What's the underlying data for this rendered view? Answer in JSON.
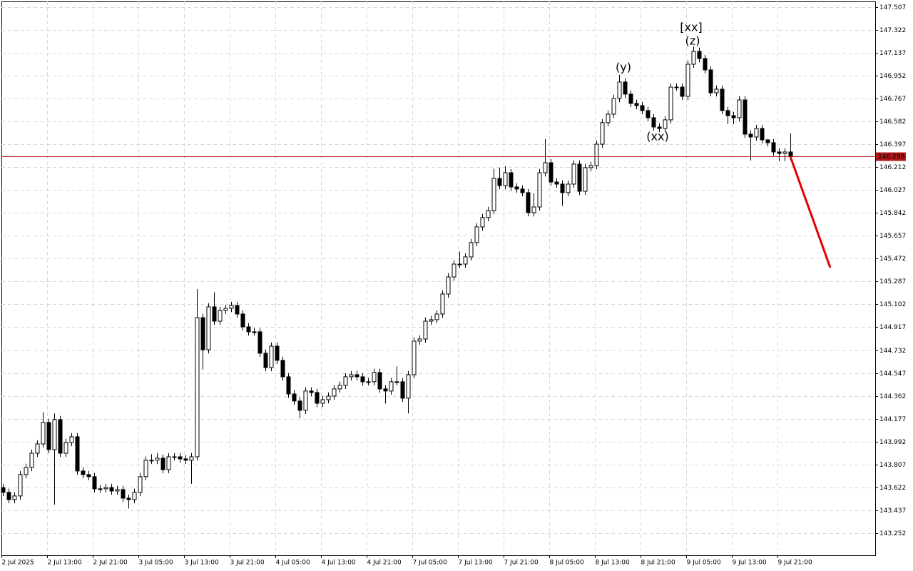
{
  "chart_data": {
    "type": "candlestick",
    "categories": [
      "2 Jul 2025",
      null,
      null,
      null,
      null,
      null,
      null,
      null,
      "2 Jul 13:00",
      null,
      null,
      null,
      null,
      null,
      null,
      null,
      "2 Jul 21:00",
      null,
      null,
      null,
      null,
      null,
      null,
      null,
      "3 Jul 05:00",
      null,
      null,
      null,
      null,
      null,
      null,
      null,
      "3 Jul 13:00",
      null,
      null,
      null,
      null,
      null,
      null,
      null,
      "3 Jul 21:00",
      null,
      null,
      null,
      null,
      null,
      null,
      null,
      "4 Jul 05:00",
      null,
      null,
      null,
      null,
      null,
      null,
      null,
      "4 Jul 13:00",
      null,
      null,
      null,
      null,
      null,
      null,
      null,
      "4 Jul 21:00",
      null,
      null,
      null,
      null,
      null,
      null,
      null,
      "7 Jul 05:00",
      null,
      null,
      null,
      null,
      null,
      null,
      null,
      "7 Jul 13:00",
      null,
      null,
      null,
      null,
      null,
      null,
      null,
      "7 Jul 21:00",
      null,
      null,
      null,
      null,
      null,
      null,
      null,
      "8 Jul 05:00",
      null,
      null,
      null,
      null,
      null,
      null,
      null,
      "8 Jul 13:00",
      null,
      null,
      null,
      null,
      null,
      null,
      null,
      "8 Jul 21:00",
      null,
      null,
      null,
      null,
      null,
      null,
      null,
      "9 Jul 05:00",
      null,
      null,
      null,
      null,
      null,
      null,
      null,
      "9 Jul 13:00",
      null,
      null,
      null,
      null,
      null,
      null,
      null,
      "9 Jul 21:00",
      null,
      null,
      null,
      null,
      null,
      null,
      null,
      null,
      null
    ],
    "open": [
      143.62,
      143.581,
      143.523,
      143.552,
      143.725,
      143.783,
      143.898,
      143.973,
      144.147,
      143.927,
      144.17,
      143.898,
      143.985,
      144.031,
      143.754,
      143.725,
      143.708,
      143.61,
      143.61,
      143.621,
      143.592,
      143.604,
      143.534,
      143.523,
      143.581,
      143.708,
      143.841,
      143.841,
      143.858,
      143.765,
      143.869,
      143.869,
      143.852,
      143.841,
      143.869,
      144.995,
      144.735,
      145.082,
      144.966,
      145.053,
      145.07,
      145.093,
      145.024,
      144.92,
      144.88,
      144.88,
      144.707,
      144.591,
      144.764,
      144.649,
      144.516,
      144.377,
      144.32,
      144.245,
      144.401,
      144.389,
      144.302,
      144.331,
      144.36,
      144.418,
      144.447,
      144.516,
      144.533,
      144.516,
      144.476,
      144.476,
      144.551,
      144.418,
      144.401,
      144.476,
      144.476,
      144.343,
      144.533,
      144.805,
      144.822,
      144.966,
      144.978,
      145.024,
      145.186,
      145.324,
      145.428,
      145.428,
      145.486,
      145.602,
      145.729,
      145.804,
      145.861,
      146.121,
      146.063,
      146.167,
      146.052,
      146.035,
      146.006,
      145.844,
      145.89,
      146.167,
      146.248,
      146.092,
      146.075,
      146.006,
      146.075,
      146.237,
      146.017,
      146.208,
      146.225,
      146.398,
      146.572,
      146.641,
      146.768,
      146.901,
      146.803,
      146.728,
      146.71,
      146.67,
      146.612,
      146.537,
      146.525,
      146.595,
      146.86,
      146.86,
      146.785,
      147.045,
      147.149,
      147.091,
      146.999,
      146.814,
      146.843,
      146.67,
      146.629,
      146.612,
      146.756,
      146.479,
      146.456,
      146.525,
      146.433,
      146.41,
      146.335,
      146.323,
      146.335,
      null,
      null,
      null,
      null,
      null,
      null,
      null
    ],
    "high": [
      143.65,
      143.611,
      143.582,
      143.755,
      143.813,
      143.928,
      144.003,
      144.23,
      144.177,
      144.22,
      144.2,
      144.015,
      144.061,
      144.061,
      143.784,
      143.755,
      143.738,
      143.64,
      143.651,
      143.651,
      143.634,
      143.634,
      143.564,
      143.611,
      143.738,
      143.871,
      143.89,
      143.9,
      143.888,
      143.899,
      143.899,
      143.899,
      143.882,
      143.899,
      145.226,
      145.025,
      145.112,
      145.2,
      145.083,
      145.1,
      145.123,
      145.123,
      145.054,
      144.95,
      144.91,
      144.91,
      144.737,
      144.794,
      144.794,
      144.679,
      144.546,
      144.407,
      144.35,
      144.431,
      144.431,
      144.419,
      144.361,
      144.39,
      144.448,
      144.477,
      144.546,
      144.563,
      144.563,
      144.546,
      144.506,
      144.581,
      144.581,
      144.448,
      144.506,
      144.6,
      144.506,
      144.563,
      144.835,
      144.852,
      144.996,
      145.008,
      145.054,
      145.216,
      145.354,
      145.458,
      145.53,
      145.516,
      145.632,
      145.759,
      145.834,
      145.891,
      146.2,
      146.21,
      146.22,
      146.197,
      146.082,
      146.065,
      146.036,
      146.0,
      146.197,
      146.439,
      146.278,
      146.122,
      146.105,
      146.105,
      146.267,
      146.267,
      146.238,
      146.255,
      146.428,
      146.602,
      146.671,
      146.798,
      146.96,
      146.931,
      146.833,
      146.758,
      146.74,
      146.7,
      146.642,
      146.567,
      146.625,
      146.89,
      146.89,
      146.89,
      147.075,
      147.19,
      147.179,
      147.121,
      147.029,
      146.873,
      146.873,
      146.7,
      146.659,
      146.786,
      146.786,
      146.509,
      146.555,
      146.555,
      146.44,
      146.44,
      146.365,
      146.365,
      146.485,
      null,
      null,
      null,
      null,
      null,
      null,
      null
    ],
    "low": [
      143.551,
      143.493,
      143.493,
      143.522,
      143.695,
      143.753,
      143.868,
      143.943,
      143.897,
      143.483,
      143.868,
      143.868,
      143.955,
      143.724,
      143.695,
      143.678,
      143.58,
      143.58,
      143.58,
      143.562,
      143.562,
      143.504,
      143.45,
      143.493,
      143.551,
      143.678,
      143.811,
      143.811,
      143.735,
      143.735,
      143.839,
      143.822,
      143.811,
      143.65,
      143.839,
      144.575,
      144.705,
      144.936,
      144.936,
      145.023,
      145.04,
      144.994,
      144.89,
      144.85,
      144.85,
      144.677,
      144.561,
      144.561,
      144.619,
      144.486,
      144.347,
      144.29,
      144.18,
      144.215,
      144.359,
      144.272,
      144.272,
      144.301,
      144.33,
      144.388,
      144.417,
      144.486,
      144.486,
      144.446,
      144.446,
      144.446,
      144.388,
      144.3,
      144.371,
      144.446,
      144.313,
      144.22,
      144.503,
      144.775,
      144.792,
      144.936,
      144.948,
      144.994,
      145.156,
      145.294,
      145.398,
      145.398,
      145.456,
      145.572,
      145.699,
      145.774,
      145.831,
      146.033,
      146.033,
      146.022,
      146.005,
      145.976,
      145.814,
      145.814,
      145.86,
      146.137,
      146.062,
      146.045,
      145.9,
      145.976,
      146.045,
      145.987,
      145.987,
      146.178,
      146.195,
      146.368,
      146.542,
      146.611,
      146.738,
      146.773,
      146.698,
      146.68,
      146.64,
      146.582,
      146.507,
      146.495,
      146.495,
      146.565,
      146.83,
      146.755,
      146.755,
      147.015,
      147.061,
      146.969,
      146.784,
      146.784,
      146.64,
      146.56,
      146.56,
      146.582,
      146.449,
      146.266,
      146.426,
      146.403,
      146.38,
      146.305,
      146.26,
      146.26,
      146.268,
      null,
      null,
      null,
      null,
      null,
      null,
      null
    ],
    "close": [
      143.581,
      143.523,
      143.552,
      143.725,
      143.783,
      143.898,
      143.973,
      144.147,
      143.927,
      144.17,
      143.898,
      143.985,
      144.031,
      143.754,
      143.725,
      143.708,
      143.61,
      143.61,
      143.621,
      143.592,
      143.604,
      143.534,
      143.523,
      143.581,
      143.708,
      143.841,
      143.841,
      143.858,
      143.765,
      143.869,
      143.869,
      143.852,
      143.841,
      143.869,
      144.995,
      144.735,
      145.082,
      144.966,
      145.053,
      145.07,
      145.093,
      145.024,
      144.92,
      144.88,
      144.88,
      144.707,
      144.591,
      144.764,
      144.649,
      144.516,
      144.377,
      144.32,
      144.245,
      144.401,
      144.389,
      144.302,
      144.331,
      144.36,
      144.418,
      144.447,
      144.516,
      144.533,
      144.516,
      144.476,
      144.476,
      144.551,
      144.418,
      144.401,
      144.476,
      144.476,
      144.343,
      144.533,
      144.805,
      144.822,
      144.966,
      144.978,
      145.024,
      145.186,
      145.324,
      145.428,
      145.428,
      145.486,
      145.602,
      145.729,
      145.804,
      145.861,
      146.121,
      146.063,
      146.167,
      146.052,
      146.035,
      146.006,
      145.844,
      145.89,
      146.167,
      146.248,
      146.092,
      146.075,
      146.006,
      146.075,
      146.237,
      146.017,
      146.208,
      146.225,
      146.398,
      146.572,
      146.641,
      146.768,
      146.901,
      146.803,
      146.728,
      146.71,
      146.67,
      146.612,
      146.537,
      146.525,
      146.595,
      146.86,
      146.86,
      146.785,
      147.045,
      147.149,
      147.091,
      146.999,
      146.814,
      146.843,
      146.67,
      146.629,
      146.612,
      146.756,
      146.479,
      146.456,
      146.525,
      146.433,
      146.41,
      146.335,
      146.323,
      146.335,
      146.298,
      null,
      null,
      null,
      null,
      null,
      null,
      null
    ],
    "up_color": "#ffffff",
    "down_color": "#000000",
    "outline_color": "#000000",
    "forecast": {
      "color": "#e00000",
      "values": [
        null,
        null,
        null,
        null,
        null,
        null,
        null,
        null,
        null,
        null,
        null,
        null,
        null,
        null,
        null,
        null,
        null,
        null,
        null,
        null,
        null,
        null,
        null,
        null,
        null,
        null,
        null,
        null,
        null,
        null,
        null,
        null,
        null,
        null,
        null,
        null,
        null,
        null,
        null,
        null,
        null,
        null,
        null,
        null,
        null,
        null,
        null,
        null,
        null,
        null,
        null,
        null,
        null,
        null,
        null,
        null,
        null,
        null,
        null,
        null,
        null,
        null,
        null,
        null,
        null,
        null,
        null,
        null,
        null,
        null,
        null,
        null,
        null,
        null,
        null,
        null,
        null,
        null,
        null,
        null,
        null,
        null,
        null,
        null,
        null,
        null,
        null,
        null,
        null,
        null,
        null,
        null,
        null,
        null,
        null,
        null,
        null,
        null,
        null,
        null,
        null,
        null,
        null,
        null,
        null,
        null,
        null,
        null,
        null,
        null,
        null,
        null,
        null,
        null,
        null,
        null,
        null,
        null,
        null,
        null,
        null,
        null,
        null,
        null,
        null,
        null,
        null,
        null,
        null,
        null,
        null,
        null,
        null,
        null,
        null,
        null,
        null,
        null,
        146.298,
        146.17,
        146.041,
        145.913,
        145.785,
        145.656,
        145.528,
        145.399
      ]
    },
    "price_line": {
      "value": 146.298,
      "color": "#b01818"
    },
    "ylim": [
      143.072,
      147.553
    ],
    "yticks": [
      147.507,
      147.322,
      147.137,
      146.952,
      146.767,
      146.582,
      146.397,
      146.212,
      146.027,
      145.842,
      145.657,
      145.472,
      145.287,
      145.102,
      144.917,
      144.732,
      144.547,
      144.362,
      144.177,
      143.992,
      143.807,
      143.622,
      143.437,
      143.252
    ],
    "grid": true,
    "annotations": [
      {
        "text": "(y)",
        "color": "#2a2ad8"
      },
      {
        "text": "(xx)",
        "color": "#2a2ad8"
      },
      {
        "text": "(z)",
        "color": "#2a2ad8"
      },
      {
        "text": "[xx]",
        "color": "#3cbf3c"
      }
    ]
  }
}
